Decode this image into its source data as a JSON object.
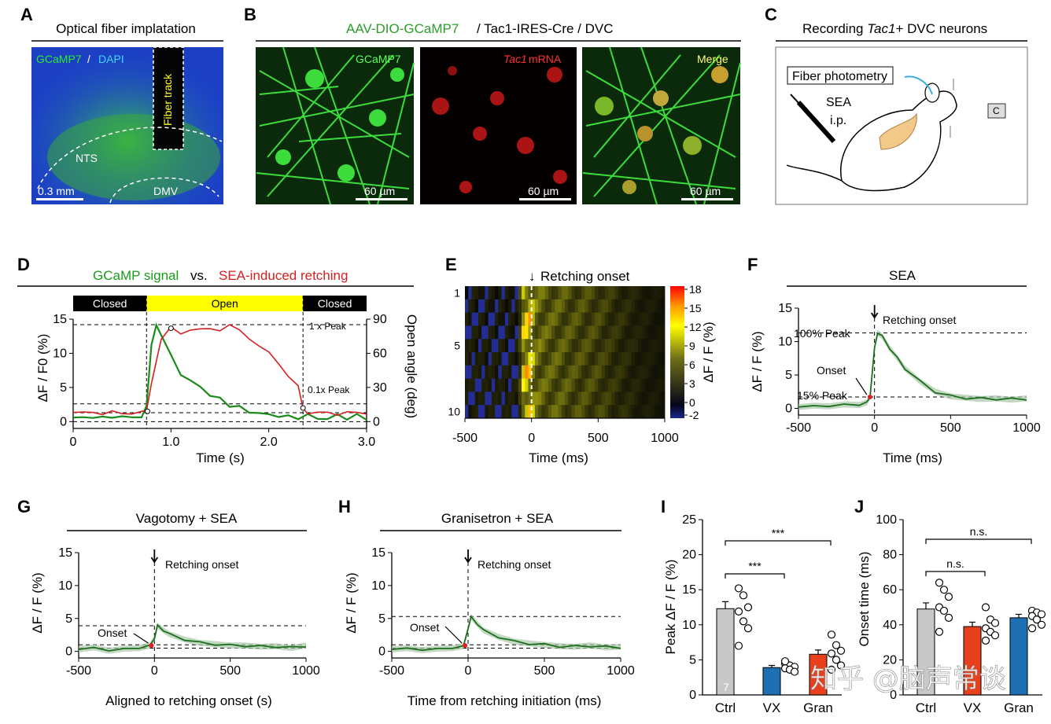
{
  "panels": {
    "A": {
      "label": "A",
      "title": "Optical fiber implatation",
      "legend_green": "GCaMP7",
      "legend_sep": " / ",
      "legend_blue": "DAPI",
      "fiber": "Fiber track",
      "nts": "NTS",
      "dmv": "DMV",
      "scale": "0.3 mm"
    },
    "B": {
      "label": "B",
      "title_green": "AAV-DIO-GCaMP7",
      "title_rest": " / Tac1-IRES-Cre / DVC",
      "img1": "GCaMP7",
      "img2_it": "Tac1",
      "img2_rest": " mRNA",
      "img3": "Merge",
      "scale": "60 µm"
    },
    "C": {
      "label": "C",
      "title_pre": "Recording ",
      "title_it": "Tac1",
      "title_post": "+ DVC neurons",
      "fiber_box": "Fiber photometry",
      "drug1": "SEA",
      "drug2": "i.p.",
      "cam": "C"
    },
    "D": {
      "label": "D",
      "title_green": "GCaMP signal",
      "title_mid": " vs. ",
      "title_red": "SEA-induced retching",
      "state_closed": "Closed",
      "state_open": "Open",
      "ylabel_left": "ΔF / F0 (%)",
      "ylabel_right": "Open angle (deg)",
      "xlabel": "Time (s)",
      "peak1": "1 x Peak",
      "peak01": "0.1x Peak"
    },
    "E": {
      "label": "E",
      "title": "Retching onset",
      "xlabel": "Time (ms)",
      "cbar_label": "ΔF / F (%)"
    },
    "F": {
      "label": "F",
      "title": "SEA",
      "annot": "Retching onset",
      "peak100": "100% Peak",
      "onset": "Onset",
      "peak15": "15% Peak",
      "ylabel": "ΔF / F (%)",
      "xlabel": "Time (ms)"
    },
    "G": {
      "label": "G",
      "title": "Vagotomy + SEA",
      "annot": "Retching onset",
      "onset": "Onset",
      "ylabel": "ΔF / F (%)",
      "xlabel": "Aligned to retching onset (s)"
    },
    "H": {
      "label": "H",
      "title": "Granisetron + SEA",
      "annot": "Retching onset",
      "onset": "Onset",
      "ylabel": "ΔF / F (%)",
      "xlabel": "Time from retching initiation (ms)"
    },
    "I": {
      "label": "I",
      "ylabel": "Peak ΔF / F (%)",
      "sig1": "***",
      "sig2": "***",
      "n": "7"
    },
    "J": {
      "label": "J",
      "ylabel": "Onset time (ms)",
      "sig1": "n.s.",
      "sig2": "n.s."
    }
  },
  "watermark": "知乎 @脑声常谈",
  "colors": {
    "green": "#1a8c1a",
    "red": "#d42020",
    "yellow": "#ffff00",
    "gray": "#c8c8c8",
    "blue": "#1f6fb4",
    "bar_red": "#e8401c"
  },
  "chart_data": [
    {
      "id": "D",
      "type": "line",
      "title": "GCaMP signal vs. SEA-induced retching",
      "xlabel": "Time (s)",
      "ylabel": "ΔF / F0 (%)",
      "ylabel_right": "Open angle (deg)",
      "xlim": [
        0,
        3.0
      ],
      "ylim": [
        -1,
        15
      ],
      "ylim_right": [
        -6,
        90
      ],
      "x_ticks": [
        0,
        1.0,
        2.0,
        3.0
      ],
      "x_tick_labels": [
        "0",
        "1.0",
        "2.0",
        "3.0"
      ],
      "y_ticks": [
        0,
        5,
        10,
        15
      ],
      "y_ticks_right": [
        0,
        30,
        60,
        90
      ],
      "states": [
        {
          "label": "Closed",
          "from": 0,
          "to": 0.75
        },
        {
          "label": "Open",
          "from": 0.75,
          "to": 2.35
        },
        {
          "label": "Closed",
          "from": 2.35,
          "to": 3.0
        }
      ],
      "ref_lines": [
        14.2,
        2.6,
        1.3,
        0
      ],
      "series": [
        {
          "name": "GCaMP",
          "axis": "left",
          "x": [
            0,
            0.1,
            0.2,
            0.3,
            0.4,
            0.5,
            0.6,
            0.7,
            0.75,
            0.8,
            0.85,
            0.9,
            1.0,
            1.1,
            1.2,
            1.3,
            1.4,
            1.5,
            1.6,
            1.7,
            1.8,
            1.9,
            2.0,
            2.1,
            2.2,
            2.3,
            2.4,
            2.5,
            2.6,
            2.7,
            2.8,
            2.9,
            3.0
          ],
          "y": [
            0.6,
            0.5,
            0.8,
            0.4,
            0.9,
            0.5,
            0.8,
            0.6,
            2.2,
            11.5,
            13.8,
            13.0,
            9.5,
            7.0,
            6.0,
            5.0,
            4.0,
            3.2,
            2.5,
            2.0,
            1.5,
            1.2,
            1.0,
            0.9,
            0.6,
            0.7,
            0.8,
            0.6,
            0.3,
            1.0,
            0.5,
            0.8,
            0.6
          ]
        },
        {
          "name": "Open angle",
          "axis": "right",
          "x": [
            0,
            0.1,
            0.2,
            0.3,
            0.4,
            0.5,
            0.6,
            0.7,
            0.75,
            0.8,
            0.9,
            1.0,
            1.1,
            1.2,
            1.3,
            1.4,
            1.5,
            1.6,
            1.7,
            1.8,
            1.9,
            2.0,
            2.1,
            2.2,
            2.3,
            2.35,
            2.4,
            2.5,
            2.6,
            2.7,
            2.8,
            2.9,
            3.0
          ],
          "y": [
            8,
            7,
            9,
            7,
            8,
            7,
            8,
            8,
            9,
            35,
            72,
            82,
            78,
            81,
            80,
            82,
            81,
            84,
            80,
            74,
            66,
            60,
            52,
            40,
            30,
            12,
            8,
            7,
            8,
            7,
            8,
            7,
            8
          ]
        }
      ]
    },
    {
      "id": "E",
      "type": "heatmap",
      "xlabel": "Time (ms)",
      "xlim": [
        -500,
        1000
      ],
      "x_ticks": [
        -500,
        0,
        500,
        1000
      ],
      "rows": 10,
      "row_ticks": [
        1,
        5,
        10
      ],
      "colorbar_ticks": [
        18,
        15,
        12,
        9,
        6,
        3,
        0,
        -2
      ],
      "colorbar_label": "ΔF / F (%)",
      "row_profile_x": [
        -500,
        -100,
        -60,
        -20,
        0,
        30,
        100,
        200,
        300,
        400,
        500,
        600,
        700,
        800,
        900,
        1000
      ],
      "row_profile_value": [
        0,
        0.5,
        14,
        15,
        13,
        9,
        8,
        7.5,
        6.5,
        6,
        5.5,
        4,
        3,
        2,
        1.5,
        1
      ]
    },
    {
      "id": "F",
      "type": "line",
      "title": "SEA",
      "xlabel": "Time (ms)",
      "ylabel": "ΔF / F (%)",
      "xlim": [
        -500,
        1000
      ],
      "ylim": [
        -1,
        15
      ],
      "x_ticks": [
        -500,
        0,
        500,
        1000
      ],
      "y_ticks": [
        0,
        5,
        10,
        15
      ],
      "ref_lines": [
        11.3,
        1.7
      ],
      "series": [
        {
          "name": "mean",
          "x": [
            -500,
            -400,
            -300,
            -200,
            -100,
            -50,
            -30,
            0,
            20,
            50,
            100,
            150,
            200,
            300,
            400,
            500,
            600,
            700,
            800,
            900,
            1000
          ],
          "y": [
            0.2,
            0.4,
            0.3,
            0.6,
            0.5,
            0.9,
            1.7,
            9.0,
            11.3,
            10.8,
            9.0,
            7.5,
            6.0,
            4.0,
            2.5,
            1.8,
            1.6,
            1.4,
            1.5,
            1.3,
            1.5
          ]
        }
      ]
    },
    {
      "id": "G",
      "type": "line",
      "title": "Vagotomy + SEA",
      "xlabel": "Aligned to retching onset (s)",
      "ylabel": "ΔF / F (%)",
      "xlim": [
        -500,
        1000
      ],
      "ylim": [
        -1,
        15
      ],
      "x_ticks": [
        -500,
        0,
        500,
        1000
      ],
      "y_ticks": [
        0,
        5,
        10,
        15
      ],
      "ref_lines": [
        3.9,
        1.0,
        0.5
      ],
      "series": [
        {
          "name": "mean",
          "x": [
            -500,
            -400,
            -300,
            -200,
            -100,
            -30,
            0,
            20,
            60,
            100,
            200,
            300,
            400,
            500,
            600,
            700,
            800,
            900,
            1000
          ],
          "y": [
            0.3,
            0.6,
            0.1,
            0.4,
            0.5,
            0.9,
            2.0,
            3.9,
            3.2,
            2.6,
            1.8,
            1.3,
            1.1,
            0.9,
            0.9,
            0.7,
            0.8,
            0.5,
            0.9
          ]
        }
      ]
    },
    {
      "id": "H",
      "type": "line",
      "title": "Granisetron + SEA",
      "xlabel": "Time from retching initiation (ms)",
      "ylabel": "ΔF / F (%)",
      "xlim": [
        -500,
        1000
      ],
      "ylim": [
        -1,
        15
      ],
      "x_ticks": [
        -500,
        0,
        500,
        1000
      ],
      "y_ticks": [
        0,
        5,
        10,
        15
      ],
      "ref_lines": [
        5.3,
        1.0,
        0.5
      ],
      "series": [
        {
          "name": "mean",
          "x": [
            -500,
            -400,
            -300,
            -200,
            -100,
            -30,
            0,
            20,
            60,
            100,
            200,
            300,
            400,
            500,
            600,
            700,
            800,
            900,
            1000
          ],
          "y": [
            0.3,
            0.5,
            0.2,
            0.4,
            0.5,
            0.8,
            3.5,
            5.2,
            4.2,
            3.2,
            2.2,
            1.5,
            1.2,
            1.0,
            0.8,
            0.7,
            0.9,
            0.6,
            0.7
          ]
        }
      ]
    },
    {
      "id": "I",
      "type": "bar",
      "ylabel": "Peak ΔF / F (%)",
      "categories": [
        "Ctrl",
        "VX",
        "Gran"
      ],
      "values": [
        12.3,
        3.9,
        5.8
      ],
      "errors": [
        1.0,
        0.3,
        0.6
      ],
      "ylim": [
        0,
        25
      ],
      "y_ticks": [
        0,
        5,
        10,
        15,
        20,
        25
      ],
      "points": [
        [
          15.2,
          14.2,
          12.5,
          11.9,
          10.5,
          9.5,
          7.0
        ],
        [
          4.5,
          4.2,
          4.0,
          3.8,
          3.6,
          3.3,
          4.8
        ],
        [
          8.6,
          7.1,
          6.3,
          5.9,
          5.0,
          4.2,
          3.6
        ]
      ],
      "significance": [
        {
          "pair": [
            "Ctrl",
            "VX"
          ],
          "label": "***"
        },
        {
          "pair": [
            "Ctrl",
            "Gran"
          ],
          "label": "***"
        }
      ]
    },
    {
      "id": "J",
      "type": "bar",
      "ylabel": "Onset time (ms)",
      "categories": [
        "Ctrl",
        "VX",
        "Gran"
      ],
      "values": [
        49,
        39,
        44
      ],
      "errors": [
        3.5,
        2.5,
        2
      ],
      "ylim": [
        0,
        100
      ],
      "y_ticks": [
        0,
        20,
        40,
        60,
        80,
        100
      ],
      "points": [
        [
          64,
          60,
          56,
          50,
          48,
          44,
          36
        ],
        [
          50,
          43,
          41,
          38,
          36,
          34,
          31
        ],
        [
          48,
          47,
          46,
          45,
          43,
          40,
          38
        ]
      ],
      "significance": [
        {
          "pair": [
            "Ctrl",
            "VX"
          ],
          "label": "n.s."
        },
        {
          "pair": [
            "Ctrl",
            "Gran"
          ],
          "label": "n.s."
        }
      ]
    }
  ]
}
